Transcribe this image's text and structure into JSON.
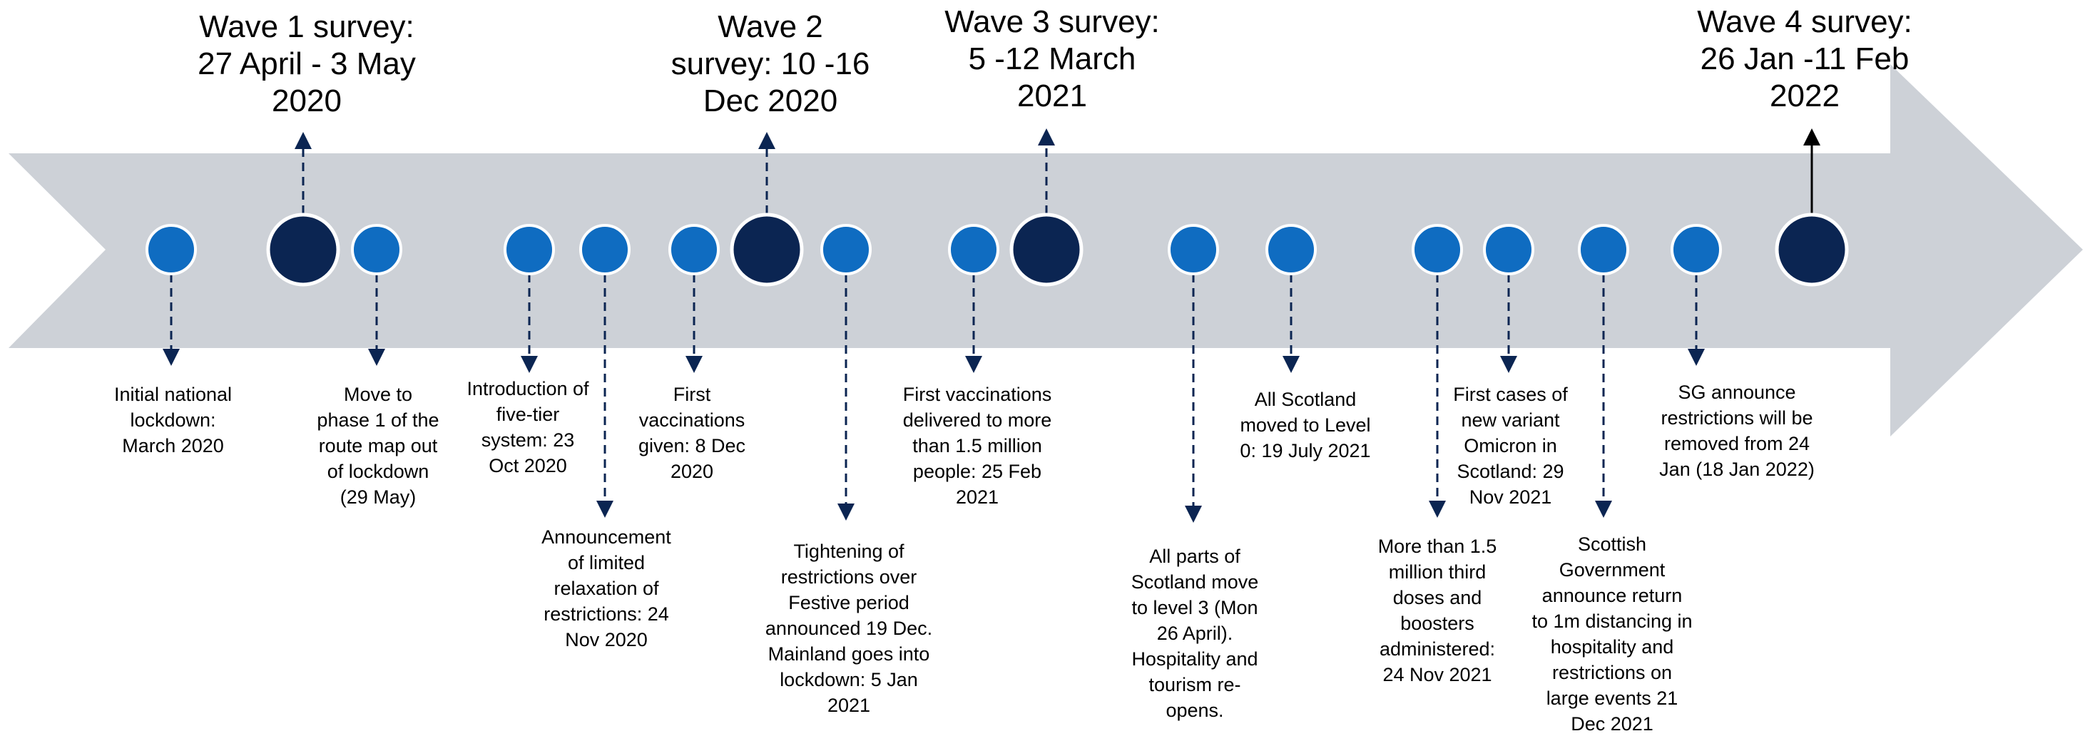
{
  "colors": {
    "arrow": "#cdd1d7",
    "event_dot": "#0f6cc1",
    "wave_dot": "#0b2552",
    "dot_outline": "#ffffff",
    "connector": "#0b2552",
    "wave_arrow_wave4": "#000000"
  },
  "waves": [
    {
      "id": "wave1",
      "label": "Wave 1 survey:\n27 April - 3 May\n2020"
    },
    {
      "id": "wave2",
      "label": "Wave 2\nsurvey: 10 -16\nDec 2020"
    },
    {
      "id": "wave3",
      "label": "Wave 3 survey:\n5 -12 March\n2021"
    },
    {
      "id": "wave4",
      "label": "Wave 4 survey:\n26 Jan -11 Feb\n2022"
    }
  ],
  "events": [
    {
      "id": "e1",
      "label": "Initial national\nlockdown:\nMarch 2020"
    },
    {
      "id": "e2",
      "label": "Move to\nphase 1 of the\nroute map out\nof lockdown\n(29 May)"
    },
    {
      "id": "e3",
      "label": "Introduction of\nfive-tier\nsystem: 23\nOct 2020"
    },
    {
      "id": "e4",
      "label": "Announcement\nof limited\nrelaxation of\nrestrictions: 24\nNov 2020"
    },
    {
      "id": "e5",
      "label": "First\nvaccinations\ngiven: 8 Dec\n2020"
    },
    {
      "id": "e6",
      "label": "Tightening of\nrestrictions over\nFestive period\nannounced 19 Dec.\nMainland goes into\nlockdown: 5 Jan\n2021"
    },
    {
      "id": "e7",
      "label": "First vaccinations\ndelivered to more\nthan 1.5 million\npeople: 25 Feb\n2021"
    },
    {
      "id": "e8",
      "label": "All parts of\nScotland move\nto level 3 (Mon\n26 April).\nHospitality and\ntourism re-\nopens."
    },
    {
      "id": "e9",
      "label": "All Scotland\nmoved to Level\n0: 19 July 2021"
    },
    {
      "id": "e10",
      "label": "More than 1.5\nmillion third\ndoses and\nboosters\nadministered:\n24 Nov 2021"
    },
    {
      "id": "e11",
      "label": "First cases of\nnew variant\nOmicron in\nScotland: 29\nNov 2021"
    },
    {
      "id": "e12",
      "label": "Scottish\nGovernment\nannounce return\nto 1m distancing in\nhospitality and\nrestrictions on\nlarge events 21\nDec 2021"
    },
    {
      "id": "e13",
      "label": "SG announce\nrestrictions will be\nremoved from 24\nJan (18 Jan 2022)"
    }
  ]
}
